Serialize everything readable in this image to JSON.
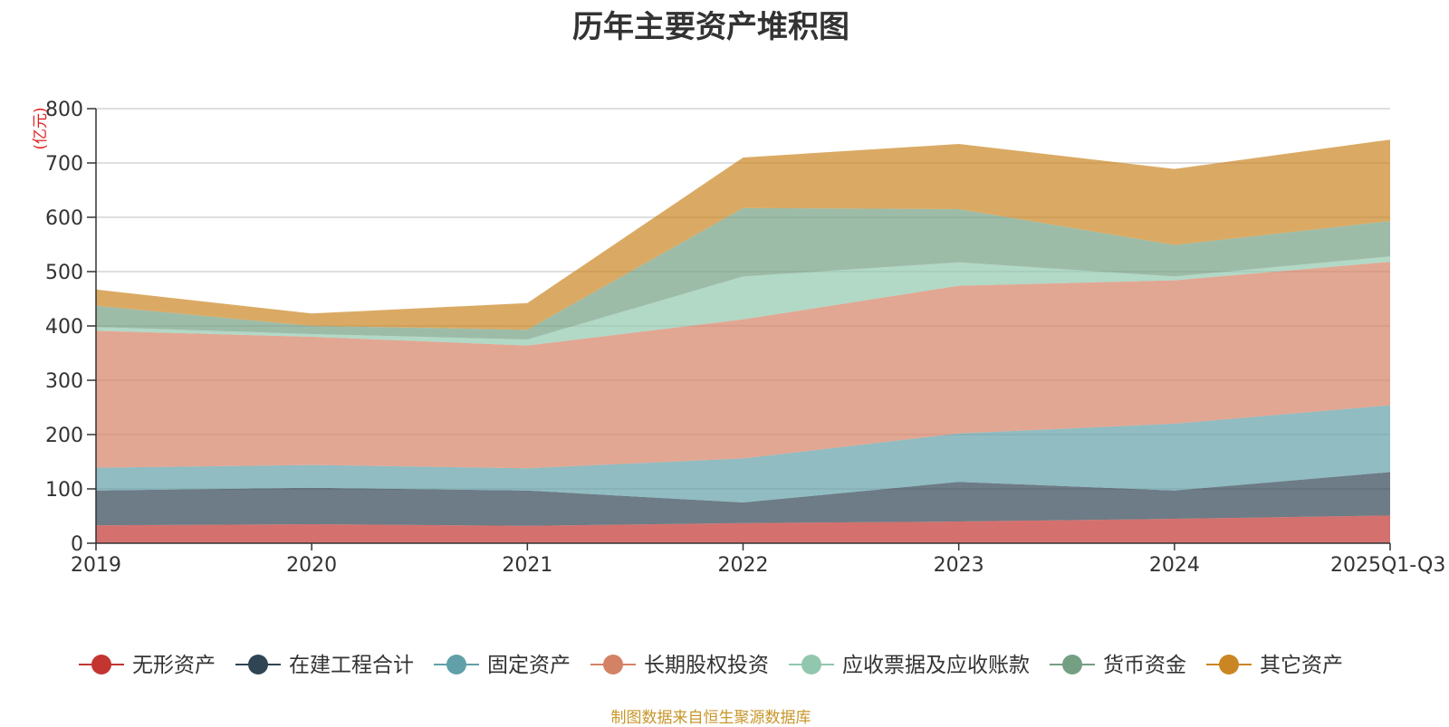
{
  "chart_data": {
    "type": "area",
    "stacked": true,
    "title": "历年主要资产堆积图",
    "unit_label": "(亿元)",
    "source": "制图数据来自恒生聚源数据库",
    "categories": [
      "2019",
      "2020",
      "2021",
      "2022",
      "2023",
      "2024",
      "2025Q1-Q3"
    ],
    "ylim": [
      0,
      800
    ],
    "yticks": [
      0,
      100,
      200,
      300,
      400,
      500,
      600,
      700,
      800
    ],
    "grid": true,
    "legend_position": "bottom",
    "series": [
      {
        "name": "无形资产",
        "color": "#c23531",
        "values": [
          33,
          35,
          32,
          37,
          40,
          45,
          51
        ]
      },
      {
        "name": "在建工程合计",
        "color": "#2f4554",
        "values": [
          64,
          67,
          65,
          38,
          73,
          52,
          80
        ]
      },
      {
        "name": "固定资产",
        "color": "#61a0a8",
        "values": [
          42,
          42,
          41,
          81,
          89,
          123,
          123
        ]
      },
      {
        "name": "长期股权投资",
        "color": "#d48265",
        "values": [
          252,
          236,
          226,
          256,
          272,
          264,
          264
        ]
      },
      {
        "name": "应收票据及应收账款",
        "color": "#91c7ae",
        "values": [
          7,
          5,
          11,
          79,
          43,
          7,
          10
        ]
      },
      {
        "name": "货币资金",
        "color": "#749f83",
        "values": [
          39,
          15,
          18,
          126,
          98,
          58,
          65
        ]
      },
      {
        "name": "其它资产",
        "color": "#ca8622",
        "values": [
          30,
          23,
          49,
          93,
          120,
          140,
          150
        ]
      }
    ]
  }
}
